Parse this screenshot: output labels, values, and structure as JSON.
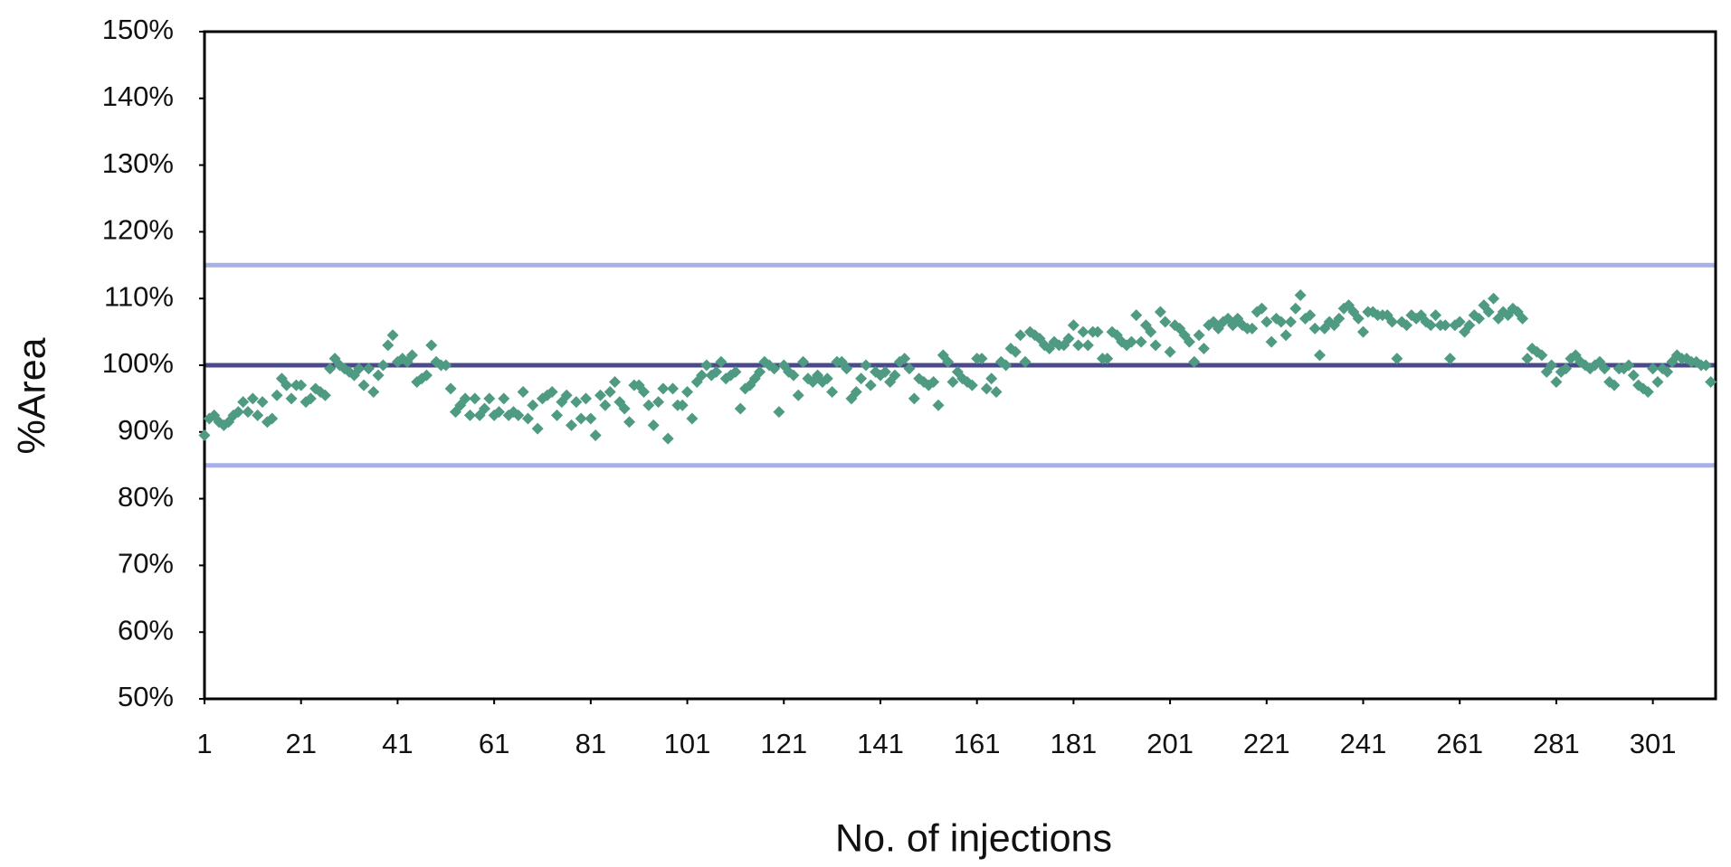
{
  "chart_data": {
    "type": "scatter",
    "xlabel": "No. of injections",
    "ylabel": "%Area",
    "xlim": [
      1,
      314
    ],
    "xticks": [
      1,
      21,
      41,
      61,
      81,
      101,
      121,
      141,
      161,
      181,
      201,
      221,
      241,
      261,
      281,
      301
    ],
    "ylim": [
      50,
      150
    ],
    "yticks": [
      {
        "value": 50,
        "label": "50%"
      },
      {
        "value": 60,
        "label": "60%"
      },
      {
        "value": 70,
        "label": "70%"
      },
      {
        "value": 80,
        "label": "80%"
      },
      {
        "value": 90,
        "label": "90%"
      },
      {
        "value": 100,
        "label": "100%"
      },
      {
        "value": 110,
        "label": "110%"
      },
      {
        "value": 120,
        "label": "120%"
      },
      {
        "value": 130,
        "label": "130%"
      },
      {
        "value": 140,
        "label": "140%"
      },
      {
        "value": 150,
        "label": "150%"
      }
    ],
    "reference_lines": [
      {
        "value": 115,
        "color": "#a7b1e8"
      },
      {
        "value": 100,
        "color": "#4a4a8a"
      },
      {
        "value": 85,
        "color": "#a7b1e8"
      }
    ],
    "color": "#4f9a83",
    "x": [
      1,
      2,
      3,
      4,
      5,
      6,
      7,
      8,
      9,
      10,
      11,
      12,
      13,
      14,
      15,
      16,
      17,
      18,
      19,
      20,
      21,
      22,
      23,
      24,
      25,
      26,
      27,
      28,
      29,
      30,
      31,
      32,
      33,
      34,
      35,
      36,
      37,
      38,
      39,
      40,
      41,
      42,
      43,
      44,
      45,
      46,
      47,
      48,
      49,
      50,
      51,
      52,
      53,
      54,
      55,
      56,
      57,
      58,
      59,
      60,
      61,
      62,
      63,
      64,
      65,
      66,
      67,
      68,
      69,
      70,
      71,
      72,
      73,
      74,
      75,
      76,
      77,
      78,
      79,
      80,
      81,
      82,
      83,
      84,
      85,
      86,
      87,
      88,
      89,
      90,
      91,
      92,
      93,
      94,
      95,
      96,
      97,
      98,
      99,
      100,
      101,
      102,
      103,
      104,
      105,
      106,
      107,
      108,
      109,
      110,
      111,
      112,
      113,
      114,
      115,
      116,
      117,
      118,
      119,
      120,
      121,
      122,
      123,
      124,
      125,
      126,
      127,
      128,
      129,
      130,
      131,
      132,
      133,
      134,
      135,
      136,
      137,
      138,
      139,
      140,
      141,
      142,
      143,
      144,
      145,
      146,
      147,
      148,
      149,
      150,
      151,
      152,
      153,
      154,
      155,
      156,
      157,
      158,
      159,
      160,
      161,
      162,
      163,
      164,
      165,
      166,
      167,
      168,
      169,
      170,
      171,
      172,
      173,
      174,
      175,
      176,
      177,
      178,
      179,
      180,
      181,
      182,
      183,
      184,
      185,
      186,
      187,
      188,
      189,
      190,
      191,
      192,
      193,
      194,
      195,
      196,
      197,
      198,
      199,
      200,
      201,
      202,
      203,
      204,
      205,
      206,
      207,
      208,
      209,
      210,
      211,
      212,
      213,
      214,
      215,
      216,
      217,
      218,
      219,
      220,
      221,
      222,
      223,
      224,
      225,
      226,
      227,
      228,
      229,
      230,
      231,
      232,
      233,
      234,
      235,
      236,
      237,
      238,
      239,
      240,
      241,
      242,
      243,
      244,
      245,
      246,
      247,
      248,
      249,
      250,
      251,
      252,
      253,
      254,
      255,
      256,
      257,
      258,
      259,
      260,
      261,
      262,
      263,
      264,
      265,
      266,
      267,
      268,
      269,
      270,
      271,
      272,
      273,
      274,
      275,
      276,
      277,
      278,
      279,
      280,
      281,
      282,
      283,
      284,
      285,
      286,
      287,
      288,
      289,
      290,
      291,
      292,
      293,
      294,
      295,
      296,
      297,
      298,
      299,
      300,
      301,
      302,
      303,
      304,
      305,
      306,
      307,
      308,
      309,
      310,
      311,
      312,
      313
    ],
    "values": [
      89.5,
      92,
      92.5,
      91.5,
      91,
      91.5,
      92.5,
      93,
      94.5,
      93,
      95,
      92.5,
      94.5,
      91.5,
      92,
      95.5,
      98,
      97,
      95,
      97,
      97,
      94.5,
      95,
      96.5,
      96,
      95.5,
      99.5,
      101,
      100,
      99.5,
      99,
      98.5,
      99.5,
      97,
      99.5,
      96,
      98.5,
      100,
      103,
      104.5,
      100.5,
      101,
      100.5,
      101.5,
      97.5,
      98,
      98.5,
      103,
      100.5,
      100,
      100,
      96.5,
      93,
      94,
      95,
      92.5,
      95,
      92.5,
      93.5,
      95,
      92.5,
      93,
      95,
      92.5,
      93,
      92.5,
      96,
      92,
      94,
      90.5,
      95,
      95.5,
      96,
      92.5,
      94.5,
      95.5,
      91,
      94.5,
      92,
      95,
      92,
      89.5,
      95.5,
      94,
      96,
      97.5,
      94.5,
      93.5,
      91.5,
      97,
      97,
      96,
      94,
      91,
      94.5,
      96.5,
      89,
      96.5,
      94,
      94,
      96,
      92,
      97.5,
      98.5,
      100,
      98.5,
      99,
      100.5,
      98,
      98.5,
      99,
      93.5,
      96.5,
      97,
      98,
      99,
      100.5,
      100,
      99.5,
      93,
      100,
      99,
      98.5,
      95.5,
      100.5,
      98,
      97.5,
      98.5,
      97.5,
      98,
      96,
      100.5,
      100.5,
      99.5,
      95,
      96,
      98,
      100,
      97,
      99,
      98.5,
      99,
      97.5,
      98.5,
      100.5,
      101,
      99.5,
      95,
      98,
      97.5,
      97,
      97.5,
      94,
      101.5,
      100.5,
      97.5,
      99,
      98,
      97.5,
      97,
      101,
      101,
      96.5,
      98,
      96,
      100.5,
      100,
      102.5,
      102,
      104.5,
      100.5,
      105,
      104.5,
      104,
      103,
      102.5,
      103.5,
      103,
      103,
      104,
      106,
      103,
      105,
      103,
      105,
      105,
      101,
      101,
      105,
      104.5,
      103.5,
      103,
      103.5,
      107.5,
      103.5,
      106,
      105,
      103,
      108,
      106.5,
      102,
      106,
      105.5,
      104.5,
      103.5,
      100.5,
      104.5,
      102.5,
      106,
      106.5,
      105.5,
      106.5,
      107,
      106,
      107,
      106,
      105.5,
      105.5,
      108,
      108.5,
      106.5,
      103.5,
      107,
      106.5,
      104.5,
      106.5,
      108.5,
      110.5,
      107,
      107.5,
      105.5,
      101.5,
      105.5,
      106.5,
      106,
      107,
      108.5,
      109,
      108,
      107,
      105,
      108,
      108,
      107.5,
      107.5,
      107.5,
      106.5,
      101,
      106.5,
      106,
      107.5,
      107,
      107.5,
      106.5,
      106,
      107.5,
      106,
      106,
      101,
      106,
      106.5,
      105,
      106,
      107.5,
      107,
      109,
      108,
      110,
      107,
      108,
      107.5,
      108.5,
      108,
      107,
      101,
      102.5,
      102,
      101.5,
      99,
      100,
      97.5,
      99,
      99.5,
      101,
      101.5,
      100.5,
      100,
      99.5,
      100,
      100.5,
      99.5,
      97.5,
      97,
      99.5,
      99.5,
      100,
      98.5,
      97,
      96.5,
      96,
      99.5,
      97.5,
      99.5,
      99,
      100.5,
      101.5,
      101,
      101,
      100.5,
      100.5,
      100,
      100,
      97.5
    ]
  }
}
